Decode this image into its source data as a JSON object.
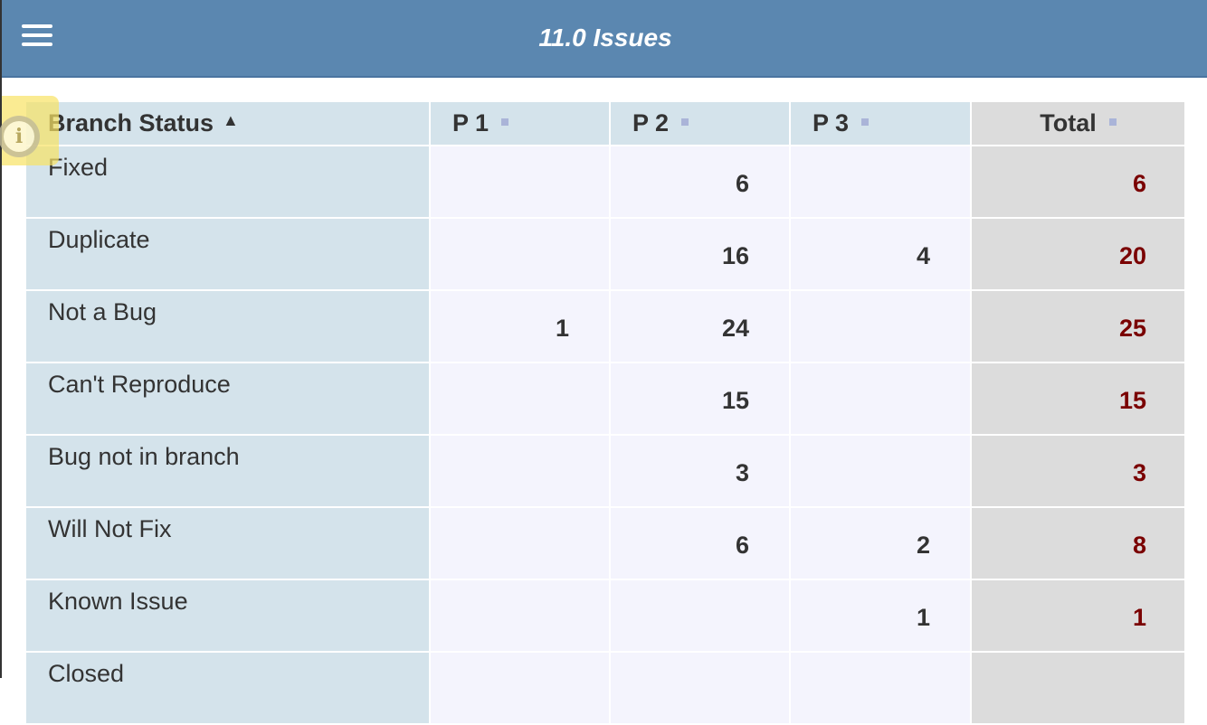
{
  "header": {
    "title": "11.0 Issues",
    "menu_icon": "hamburger-icon"
  },
  "table": {
    "columns": [
      {
        "label": "Branch Status",
        "sort": "ascending"
      },
      {
        "label": "P 1"
      },
      {
        "label": "P 2"
      },
      {
        "label": "P 3"
      },
      {
        "label": "Total"
      }
    ],
    "rows": [
      {
        "status": "Fixed",
        "p1": "",
        "p2": "6",
        "p3": "",
        "total": "6"
      },
      {
        "status": "Duplicate",
        "p1": "",
        "p2": "16",
        "p3": "4",
        "total": "20"
      },
      {
        "status": "Not a Bug",
        "p1": "1",
        "p2": "24",
        "p3": "",
        "total": "25"
      },
      {
        "status": "Can't Reproduce",
        "p1": "",
        "p2": "15",
        "p3": "",
        "total": "15"
      },
      {
        "status": "Bug not in branch",
        "p1": "",
        "p2": "3",
        "p3": "",
        "total": "3"
      },
      {
        "status": "Will Not Fix",
        "p1": "",
        "p2": "6",
        "p3": "2",
        "total": "8"
      },
      {
        "status": "Known Issue",
        "p1": "",
        "p2": "",
        "p3": "1",
        "total": "1"
      },
      {
        "status": "Closed",
        "p1": "",
        "p2": "",
        "p3": "",
        "total": ""
      }
    ]
  },
  "colors": {
    "header_bg": "#5b87b0",
    "label_bg": "#d4e3eb",
    "cell_bg": "#f4f4fd",
    "total_bg": "#dcdcdc",
    "total_text": "#7a0000"
  },
  "info_icon": "info-icon"
}
